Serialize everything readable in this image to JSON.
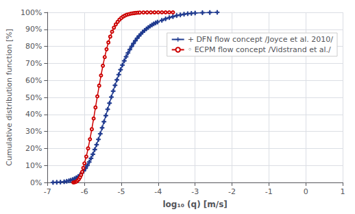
{
  "chart_data": {
    "type": "line",
    "xlabel": "log₁₀ (q) [m/s]",
    "ylabel": "Cumulative distribution function [%]",
    "xlim": [
      -7,
      1
    ],
    "ylim": [
      0,
      1.0
    ],
    "xticks": [
      -7,
      -6,
      -5,
      -4,
      -3,
      -2,
      -1,
      0,
      1
    ],
    "yticks": [
      {
        "value": 0.0,
        "label": "0%"
      },
      {
        "value": 0.1,
        "label": "10%"
      },
      {
        "value": 0.2,
        "label": "20%"
      },
      {
        "value": 0.3,
        "label": "30%"
      },
      {
        "value": 0.4,
        "label": "40%"
      },
      {
        "value": 0.5,
        "label": "50%"
      },
      {
        "value": 0.6,
        "label": "60%"
      },
      {
        "value": 0.7,
        "label": "70%"
      },
      {
        "value": 0.8,
        "label": "80%"
      },
      {
        "value": 0.9,
        "label": "90%"
      },
      {
        "value": 1.0,
        "label": "100%"
      }
    ],
    "grid": true,
    "legend": "upper right",
    "series": [
      {
        "name": "+ DFN flow concept /Joyce et al. 2010/",
        "color": "#1F3A8F",
        "marker": "plus",
        "x": [
          -6.85,
          -6.75,
          -6.65,
          -6.55,
          -6.48,
          -6.42,
          -6.37,
          -6.32,
          -6.27,
          -6.22,
          -6.17,
          -6.12,
          -6.07,
          -6.02,
          -5.97,
          -5.92,
          -5.87,
          -5.82,
          -5.77,
          -5.72,
          -5.67,
          -5.62,
          -5.57,
          -5.52,
          -5.47,
          -5.42,
          -5.37,
          -5.32,
          -5.27,
          -5.22,
          -5.17,
          -5.12,
          -5.07,
          -5.02,
          -4.97,
          -4.92,
          -4.87,
          -4.82,
          -4.77,
          -4.72,
          -4.67,
          -4.62,
          -4.57,
          -4.52,
          -4.47,
          -4.42,
          -4.37,
          -4.32,
          -4.27,
          -4.22,
          -4.17,
          -4.12,
          -4.07,
          -4.02,
          -3.9,
          -3.8,
          -3.7,
          -3.6,
          -3.5,
          -3.4,
          -3.3,
          -3.2,
          -3.1,
          -3.0,
          -2.8,
          -2.6,
          -2.4
        ],
        "values": [
          0.0,
          0.001,
          0.002,
          0.004,
          0.007,
          0.01,
          0.013,
          0.017,
          0.022,
          0.028,
          0.035,
          0.044,
          0.055,
          0.068,
          0.083,
          0.1,
          0.12,
          0.142,
          0.166,
          0.193,
          0.222,
          0.253,
          0.286,
          0.321,
          0.357,
          0.393,
          0.43,
          0.466,
          0.502,
          0.537,
          0.571,
          0.603,
          0.634,
          0.663,
          0.69,
          0.715,
          0.739,
          0.761,
          0.781,
          0.8,
          0.817,
          0.833,
          0.848,
          0.861,
          0.873,
          0.884,
          0.894,
          0.903,
          0.911,
          0.919,
          0.926,
          0.932,
          0.938,
          0.943,
          0.953,
          0.962,
          0.969,
          0.975,
          0.981,
          0.985,
          0.989,
          0.992,
          0.994,
          0.996,
          0.998,
          0.999,
          1.0
        ]
      },
      {
        "name": "◦ ECPM flow concept /Vidstrand et al./",
        "color": "#CC0000",
        "marker": "circle",
        "x": [
          -6.3,
          -6.27,
          -6.24,
          -6.21,
          -6.18,
          -6.15,
          -6.12,
          -6.09,
          -6.06,
          -6.03,
          -6.0,
          -5.95,
          -5.9,
          -5.85,
          -5.8,
          -5.75,
          -5.7,
          -5.65,
          -5.6,
          -5.55,
          -5.5,
          -5.45,
          -5.4,
          -5.35,
          -5.3,
          -5.25,
          -5.2,
          -5.15,
          -5.1,
          -5.05,
          -5.0,
          -4.95,
          -4.9,
          -4.85,
          -4.8,
          -4.75,
          -4.7,
          -4.65,
          -4.6,
          -4.55,
          -4.5,
          -4.4,
          -4.3,
          -4.2,
          -4.1,
          -4.0,
          -3.9,
          -3.8,
          -3.7,
          -3.6
        ],
        "values": [
          0.0,
          0.001,
          0.003,
          0.006,
          0.012,
          0.02,
          0.03,
          0.044,
          0.062,
          0.085,
          0.112,
          0.152,
          0.2,
          0.254,
          0.313,
          0.376,
          0.441,
          0.506,
          0.569,
          0.629,
          0.686,
          0.737,
          0.783,
          0.823,
          0.857,
          0.886,
          0.91,
          0.929,
          0.944,
          0.957,
          0.967,
          0.975,
          0.981,
          0.986,
          0.989,
          0.992,
          0.994,
          0.9955,
          0.997,
          0.998,
          0.9985,
          0.9992,
          0.9995,
          0.9997,
          0.9998,
          0.9999,
          1.0,
          1.0,
          1.0,
          1.0
        ]
      }
    ]
  }
}
